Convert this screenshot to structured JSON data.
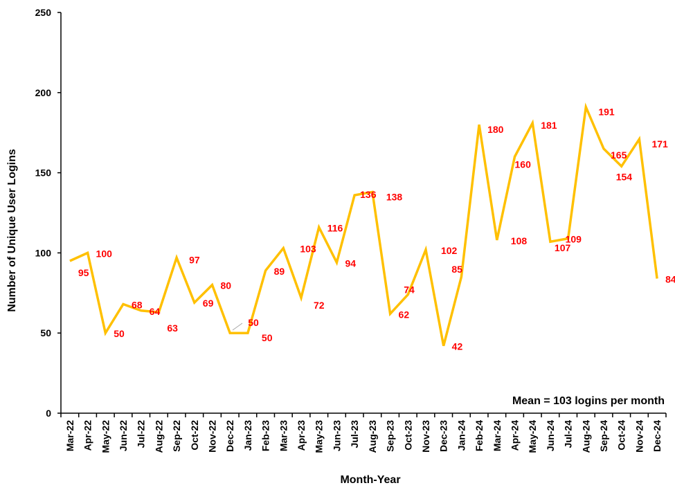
{
  "chart_data": {
    "type": "line",
    "title": "",
    "xlabel": "Month-Year",
    "ylabel": "Number of Unique User Logins",
    "ylim": [
      0,
      250
    ],
    "yticks": [
      0,
      50,
      100,
      150,
      200,
      250
    ],
    "grid": false,
    "legend": "none",
    "annotation": "Mean = 103 logins per month",
    "colors": {
      "line": "#FFC000",
      "labels": "#FF0000",
      "axis": "#000000"
    },
    "categories": [
      "Mar-22",
      "Apr-22",
      "May-22",
      "Jun-22",
      "Jul-22",
      "Aug-22",
      "Sep-22",
      "Oct-22",
      "Nov-22",
      "Dec-22",
      "Jan-23",
      "Feb-23",
      "Mar-23",
      "Apr-23",
      "May-23",
      "Jun-23",
      "Jul-23",
      "Aug-23",
      "Sep-23",
      "Oct-23",
      "Nov-23",
      "Dec-23",
      "Jan-24",
      "Feb-24",
      "Mar-24",
      "Apr-24",
      "May-24",
      "Jun-24",
      "Jul-24",
      "Aug-24",
      "Sep-24",
      "Oct-24",
      "Nov-24",
      "Dec-24"
    ],
    "series": [
      {
        "values": [
          95,
          100,
          50,
          68,
          64,
          63,
          97,
          69,
          80,
          50,
          50,
          89,
          103,
          72,
          116,
          94,
          136,
          138,
          62,
          74,
          102,
          42,
          85,
          180,
          108,
          160,
          181,
          107,
          109,
          191,
          165,
          154,
          171,
          84
        ]
      }
    ]
  }
}
